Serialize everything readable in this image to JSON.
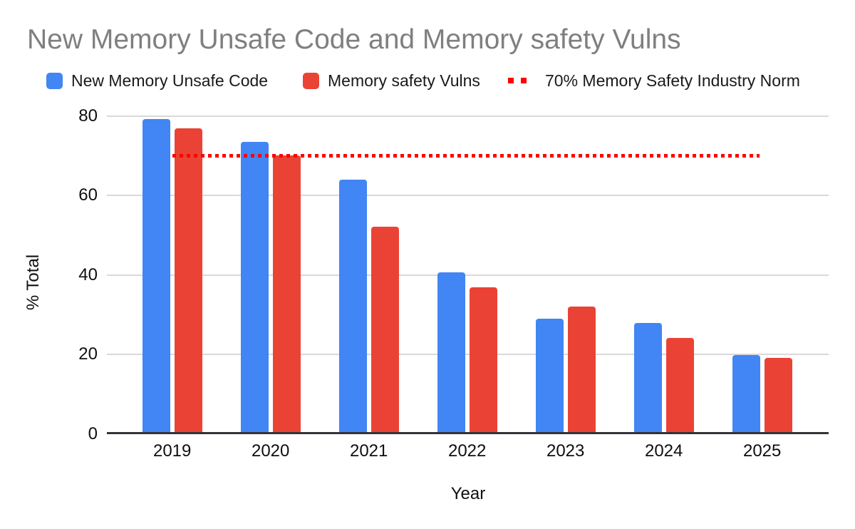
{
  "title": "New Memory Unsafe Code and Memory safety Vulns",
  "chart_data": {
    "type": "bar",
    "title": "New Memory Unsafe Code and Memory safety Vulns",
    "categories": [
      "2019",
      "2020",
      "2021",
      "2022",
      "2023",
      "2024",
      "2025"
    ],
    "series": [
      {
        "name": "New Memory Unsafe Code",
        "color": "#4285F4",
        "values": [
          79.3,
          73.4,
          64.0,
          40.7,
          29.1,
          27.9,
          19.9
        ]
      },
      {
        "name": "Memory safety Vulns",
        "color": "#EA4335",
        "values": [
          76.9,
          70.0,
          52.1,
          37.0,
          32.0,
          24.2,
          19.2
        ]
      }
    ],
    "reference_line": {
      "label": "70% Memory Safety Industry Norm",
      "value": 70,
      "color": "#FF0000",
      "style": "dotted"
    },
    "xlabel": "Year",
    "ylabel": "% Total",
    "ylim": [
      0,
      80
    ],
    "yticks": [
      0,
      20,
      40,
      60,
      80
    ],
    "grid": true,
    "legend_position": "top",
    "title_color": "#7f7f7f",
    "gridline_color": "#d9d9d9",
    "axis_line_color": "#33333a"
  }
}
